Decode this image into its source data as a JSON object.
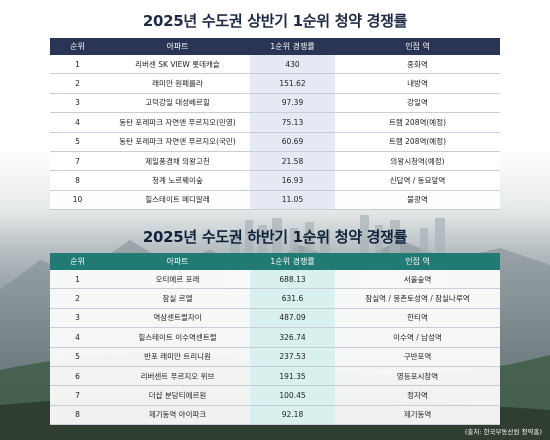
{
  "top_table": {
    "title": "2025년 수도권 상반기 1순위 청약 경쟁률",
    "headers": [
      "순위",
      "아파트",
      "1순위 경쟁률",
      "인접 역"
    ],
    "rows": [
      {
        "rank": "1",
        "apt": "리버센 SK VIEW 롯데캐슬",
        "rate": "430",
        "station": "중화역"
      },
      {
        "rank": "2",
        "apt": "래미안 원페를라",
        "rate": "151.62",
        "station": "내방역"
      },
      {
        "rank": "3",
        "apt": "고덕강일 대성베르힐",
        "rate": "97.39",
        "station": "강일역"
      },
      {
        "rank": "4",
        "apt": "동탄 포레파크 자연앤 푸르지오(민영)",
        "rate": "75.13",
        "station": "트램 208역(예정)"
      },
      {
        "rank": "5",
        "apt": "동탄 포레파크 자연앤 푸르지오(국민)",
        "rate": "60.69",
        "station": "트램 208역(예정)"
      },
      {
        "rank": "7",
        "apt": "제일풍경채 의왕고천",
        "rate": "21.58",
        "station": "의왕시청역(예정)"
      },
      {
        "rank": "8",
        "apt": "청계 노르웨이숲",
        "rate": "16.93",
        "station": "신답역 / 동묘앞역"
      },
      {
        "rank": "10",
        "apt": "힐스테이트 메디알레",
        "rate": "11.05",
        "station": "불광역"
      }
    ]
  },
  "bottom_table": {
    "title": "2025년 수도권 하반기 1순위 청약 경쟁률",
    "headers": [
      "순위",
      "아파트",
      "1순위 경쟁률",
      "인접 역"
    ],
    "rows": [
      {
        "rank": "1",
        "apt": "오티에르 포레",
        "rate": "688.13",
        "station": "서울숲역"
      },
      {
        "rank": "2",
        "apt": "잠실 르엘",
        "rate": "631.6",
        "station": "잠실역 / 몽촌토성역 / 잠실나루역"
      },
      {
        "rank": "3",
        "apt": "역삼센트럴자이",
        "rate": "487.09",
        "station": "한티역"
      },
      {
        "rank": "4",
        "apt": "힐스테이트 이수역센트럴",
        "rate": "326.74",
        "station": "이수역 / 남성역"
      },
      {
        "rank": "5",
        "apt": "반포 래미안 트리니원",
        "rate": "237.53",
        "station": "구반포역"
      },
      {
        "rank": "6",
        "apt": "리버센트 푸르지오 위브",
        "rate": "191.35",
        "station": "영등포시장역"
      },
      {
        "rank": "7",
        "apt": "더샵 분당티에르원",
        "rate": "100.45",
        "station": "정자역"
      },
      {
        "rank": "8",
        "apt": "제기동역 아이파크",
        "rate": "92.18",
        "station": "제기동역"
      }
    ]
  },
  "source": "(출처: 한국부동산원 청약홈)"
}
